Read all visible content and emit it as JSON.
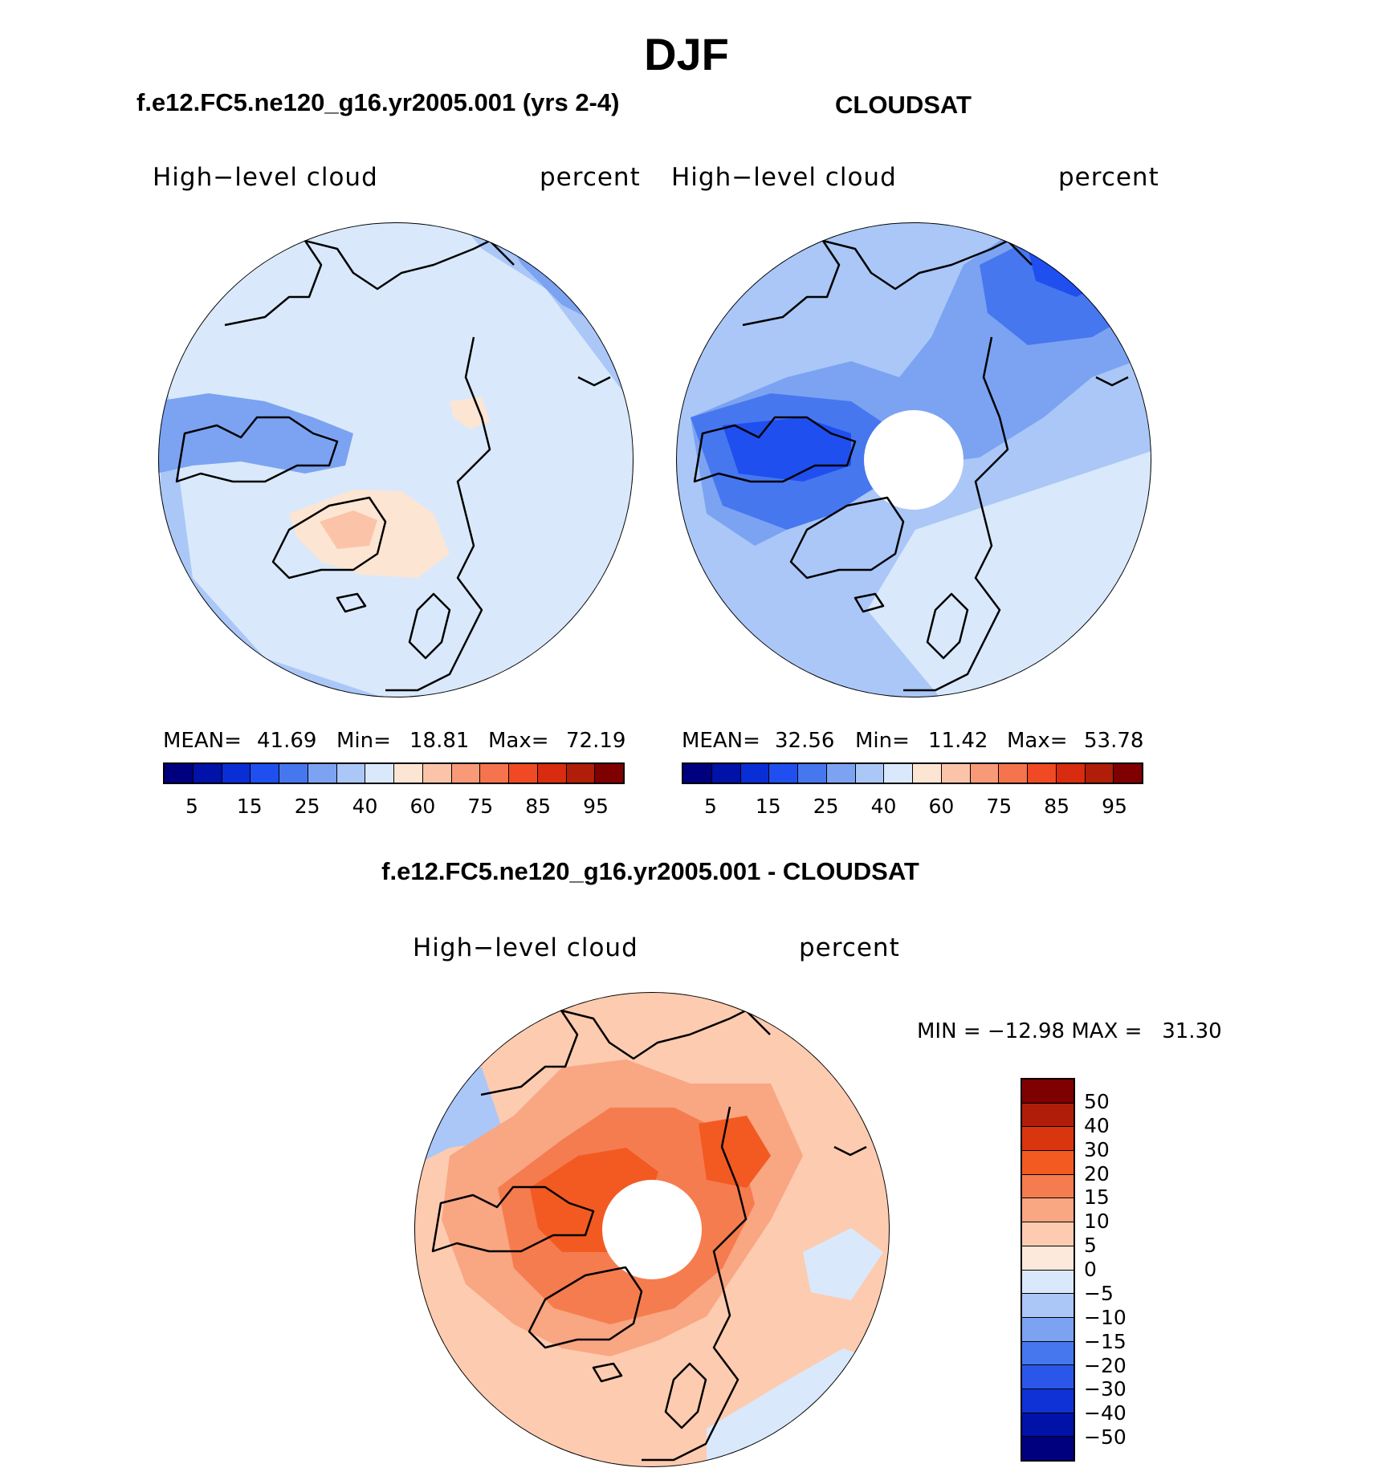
{
  "figure": {
    "season": "DJF",
    "model_case_title": "f.e12.FC5.ne120_g16.yr2005.001 (yrs 2-4)",
    "obs_title": "CLOUDSAT",
    "diff_title": "f.e12.FC5.ne120_g16.yr2005.001 - CLOUDSAT"
  },
  "panels": {
    "model": {
      "variable": "High−level cloud",
      "units": "percent",
      "mean_label": "MEAN=",
      "mean": "41.69",
      "min_label": "Min=",
      "min": "18.81",
      "max_label": "Max=",
      "max": "72.19"
    },
    "obs": {
      "variable": "High−level cloud",
      "units": "percent",
      "mean_label": "MEAN=",
      "mean": "32.56",
      "min_label": "Min=",
      "min": "11.42",
      "max_label": "Max=",
      "max": "53.78"
    },
    "diff": {
      "variable": "High−level cloud",
      "units": "percent",
      "minmax": "MIN = −12.98 MAX =   31.30"
    }
  },
  "colorbar_abs": {
    "colors": [
      "#00007f",
      "#0012a8",
      "#0a2ed6",
      "#1f4fef",
      "#4677ef",
      "#7ba3f1",
      "#aac7f7",
      "#d9e9fb",
      "#fde5d3",
      "#fbc4a8",
      "#f89a78",
      "#f5744d",
      "#ef4a23",
      "#d92b0f",
      "#b01d09",
      "#7f0000"
    ],
    "tick_labels": [
      "5",
      "15",
      "25",
      "40",
      "60",
      "75",
      "85",
      "95"
    ]
  },
  "colorbar_diff": {
    "colors": [
      "#7f0000",
      "#b01d09",
      "#d9350f",
      "#f25a22",
      "#f57c4f",
      "#f9a682",
      "#fdcbb0",
      "#fde9db",
      "#d9e9fb",
      "#aac7f7",
      "#7ba3f1",
      "#4677ef",
      "#2a57ea",
      "#0f32d6",
      "#0012a8",
      "#00007f"
    ],
    "tick_labels": [
      "50",
      "40",
      "30",
      "20",
      "15",
      "10",
      "5",
      "0",
      "−5",
      "−10",
      "−15",
      "−20",
      "−30",
      "−40",
      "−50"
    ]
  },
  "chart_data": [
    {
      "type": "heatmap",
      "projection": "north-polar-stereographic",
      "title": "f.e12.FC5.ne120_g16.yr2005.001 (yrs 2-4)",
      "variable": "High-level cloud",
      "units": "percent",
      "mean": 41.69,
      "min": 18.81,
      "max": 72.19,
      "levels": [
        5,
        10,
        15,
        20,
        25,
        30,
        40,
        50,
        60,
        65,
        75,
        80,
        85,
        90,
        95
      ],
      "dominant_class": "40-50",
      "regions": [
        {
          "name": "background",
          "class": 7
        },
        {
          "name": "outer-ring",
          "class": 6
        },
        {
          "name": "canada-archipelago",
          "class": 5
        },
        {
          "name": "northeast-pacific-sector",
          "class": 5
        },
        {
          "name": "greenland-center",
          "class": 10
        },
        {
          "name": "greenland",
          "class": 8
        },
        {
          "name": "siberia-patch",
          "class": 8
        }
      ]
    },
    {
      "type": "heatmap",
      "projection": "north-polar-stereographic",
      "title": "CLOUDSAT",
      "variable": "High-level cloud",
      "units": "percent",
      "mean": 32.56,
      "min": 11.42,
      "max": 53.78,
      "levels": [
        5,
        10,
        15,
        20,
        25,
        30,
        40,
        50,
        60,
        65,
        75,
        80,
        85,
        90,
        95
      ],
      "missing": "pole-hole",
      "regions": [
        {
          "name": "background",
          "class": 6
        },
        {
          "name": "atlantic-sector",
          "class": 7
        },
        {
          "name": "canada-band",
          "class": 4
        },
        {
          "name": "canada-archipelago",
          "class": 3
        },
        {
          "name": "east-siberia-band",
          "class": 3
        },
        {
          "name": "east-siberia-core",
          "class": 2
        }
      ]
    },
    {
      "type": "heatmap",
      "projection": "north-polar-stereographic",
      "title": "f.e12.FC5.ne120_g16.yr2005.001 - CLOUDSAT",
      "variable": "High-level cloud",
      "units": "percent",
      "min": -12.98,
      "max": 31.3,
      "levels": [
        -50,
        -40,
        -30,
        -20,
        -15,
        -10,
        -5,
        0,
        5,
        10,
        15,
        20,
        30,
        40,
        50
      ],
      "missing": "pole-hole",
      "regions": [
        {
          "name": "background",
          "class": 6
        },
        {
          "name": "mid-ring",
          "class": 5
        },
        {
          "name": "inner-ring",
          "class": 4
        },
        {
          "name": "core-canada",
          "class": 3
        },
        {
          "name": "core-siberia",
          "class": 3
        },
        {
          "name": "west-pacific-blue",
          "class": 9
        },
        {
          "name": "north-atlantic-blue",
          "class": 8
        }
      ]
    }
  ]
}
